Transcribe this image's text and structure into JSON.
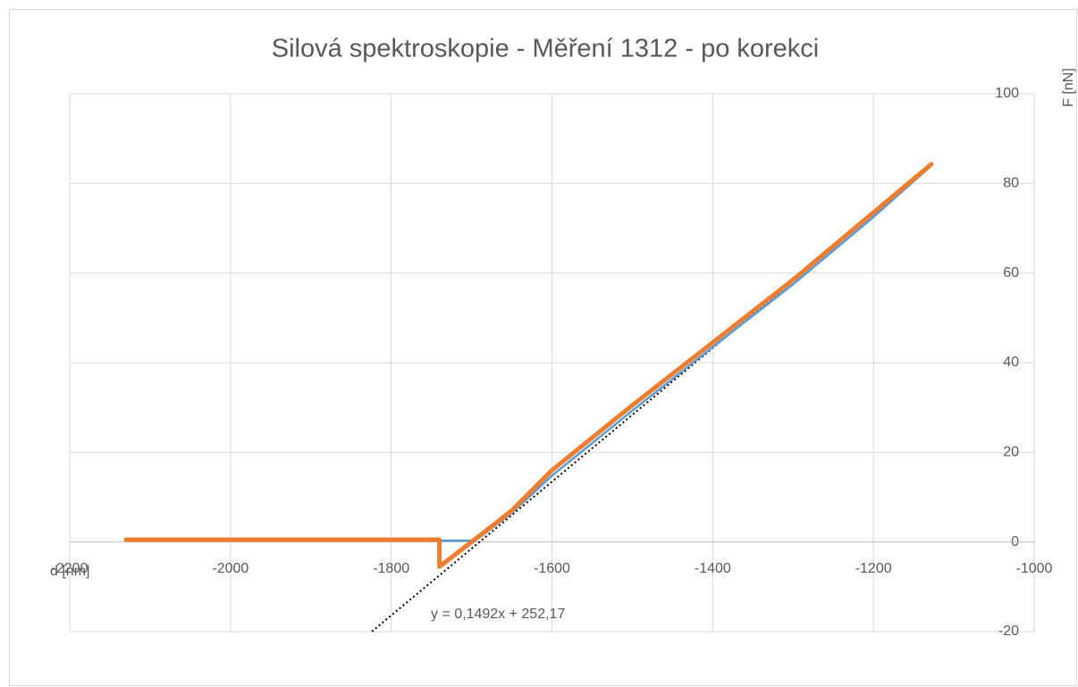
{
  "chart_data": {
    "type": "line",
    "title": "Silová spektroskopie - Měření 1312 - po korekci",
    "x_label": "d [nm]",
    "y_label": "F [nN]",
    "xlim": [
      -2200,
      -1000
    ],
    "xticks": [
      -2200,
      -2000,
      -1800,
      -1600,
      -1400,
      -1200,
      -1000
    ],
    "ylim": [
      -20,
      100
    ],
    "yticks": [
      -20,
      0,
      20,
      40,
      60,
      80,
      100
    ],
    "grid": true,
    "series": [
      {
        "color": "#5b9bd5",
        "x": [
          -2130,
          -1700,
          -1690,
          -1650,
          -1600,
          -1500,
          -1400,
          -1300,
          -1200,
          -1128
        ],
        "values": [
          0.3,
          0.3,
          1,
          6.5,
          14.8,
          29.3,
          43.5,
          57.5,
          72.5,
          84
        ]
      },
      {
        "color": "#ed7d31",
        "x": [
          -2130,
          -1740,
          -1740,
          -1700,
          -1650,
          -1600,
          -1500,
          -1400,
          -1300,
          -1200,
          -1128
        ],
        "values": [
          0.5,
          0.5,
          -5.5,
          0,
          7,
          16,
          30.5,
          44.5,
          58.5,
          73.5,
          84.3
        ]
      }
    ],
    "trendline": {
      "label": "y = 0,1492x + 252,17",
      "slope": 0.1492,
      "intercept": 252.17,
      "x": [
        -1824,
        -1128
      ],
      "color": "#000000"
    }
  }
}
